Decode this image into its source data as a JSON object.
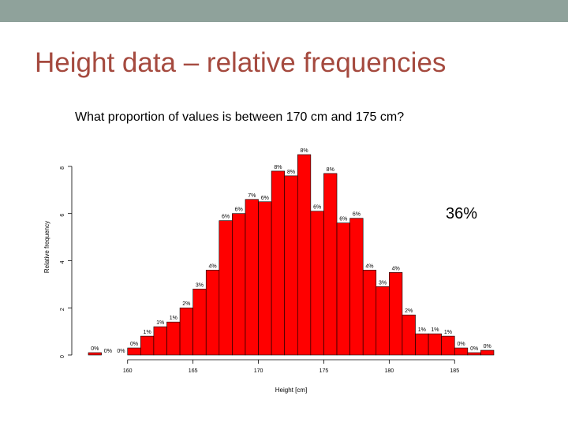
{
  "slide": {
    "title": "Height data – relative frequencies",
    "question": "What proportion of values is between 170 cm and 175 cm?",
    "answer": "36%",
    "accent_color": "#a54a3f",
    "topbar_color": "#8fa29b"
  },
  "chart_data": {
    "type": "bar",
    "xlabel": "Height [cm]",
    "ylabel": "Relative frequency",
    "bar_color": "#ff0000",
    "bin_width": 1,
    "xlim": [
      157,
      188
    ],
    "ylim": [
      0,
      8.6
    ],
    "x_ticks": [
      160,
      165,
      170,
      175,
      180,
      185
    ],
    "y_ticks": [
      0,
      2,
      4,
      6,
      8
    ],
    "bins": [
      {
        "start": 157,
        "value": 0.1,
        "label": "0%"
      },
      {
        "start": 158,
        "value": 0.0,
        "label": "0%"
      },
      {
        "start": 159,
        "value": 0.0,
        "label": "0%"
      },
      {
        "start": 160,
        "value": 0.3,
        "label": "0%"
      },
      {
        "start": 161,
        "value": 0.8,
        "label": "1%"
      },
      {
        "start": 162,
        "value": 1.2,
        "label": "1%"
      },
      {
        "start": 163,
        "value": 1.4,
        "label": "1%"
      },
      {
        "start": 164,
        "value": 2.0,
        "label": "2%"
      },
      {
        "start": 165,
        "value": 2.8,
        "label": "3%"
      },
      {
        "start": 166,
        "value": 3.6,
        "label": "4%"
      },
      {
        "start": 167,
        "value": 5.7,
        "label": "6%"
      },
      {
        "start": 168,
        "value": 6.0,
        "label": "6%"
      },
      {
        "start": 169,
        "value": 6.6,
        "label": "7%"
      },
      {
        "start": 170,
        "value": 6.5,
        "label": "6%"
      },
      {
        "start": 171,
        "value": 7.8,
        "label": "8%"
      },
      {
        "start": 172,
        "value": 7.6,
        "label": "8%"
      },
      {
        "start": 173,
        "value": 8.5,
        "label": "8%"
      },
      {
        "start": 174,
        "value": 6.1,
        "label": "6%"
      },
      {
        "start": 175,
        "value": 7.7,
        "label": "8%"
      },
      {
        "start": 176,
        "value": 5.6,
        "label": "6%"
      },
      {
        "start": 177,
        "value": 5.8,
        "label": "6%"
      },
      {
        "start": 178,
        "value": 3.6,
        "label": "4%"
      },
      {
        "start": 179,
        "value": 2.9,
        "label": "3%"
      },
      {
        "start": 180,
        "value": 3.5,
        "label": "4%"
      },
      {
        "start": 181,
        "value": 1.7,
        "label": "2%"
      },
      {
        "start": 182,
        "value": 0.9,
        "label": "1%"
      },
      {
        "start": 183,
        "value": 0.9,
        "label": "1%"
      },
      {
        "start": 184,
        "value": 0.8,
        "label": "1%"
      },
      {
        "start": 185,
        "value": 0.3,
        "label": "0%"
      },
      {
        "start": 186,
        "value": 0.1,
        "label": "0%"
      },
      {
        "start": 187,
        "value": 0.2,
        "label": "0%"
      }
    ]
  }
}
